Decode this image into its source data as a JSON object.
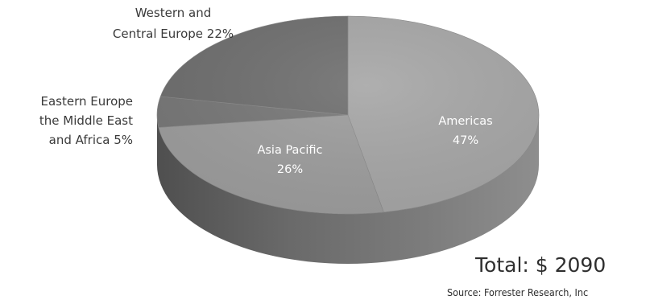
{
  "chart_data": {
    "type": "pie",
    "slices": [
      {
        "name": "Americas",
        "value": 47,
        "label_lines": [
          "Americas",
          "47%"
        ],
        "color": "#a6a6a6"
      },
      {
        "name": "Asia Pacific",
        "value": 26,
        "label_lines": [
          "Asia Pacific",
          "26%"
        ],
        "color": "#9d9d9d"
      },
      {
        "name": "Eastern Europe the Middle East and Africa",
        "value": 5,
        "label_lines": [
          "Eastern Europe",
          "the Middle East",
          "and Africa 5%"
        ],
        "color": "#777777"
      },
      {
        "name": "Western and Central Europe",
        "value": 22,
        "label_lines": [
          "Western and",
          "Central Europe 22%"
        ],
        "color": "#6e6e6e"
      }
    ],
    "total_text": "Total: $ 2090",
    "source_text": "Source: Forrester Research, Inc"
  }
}
